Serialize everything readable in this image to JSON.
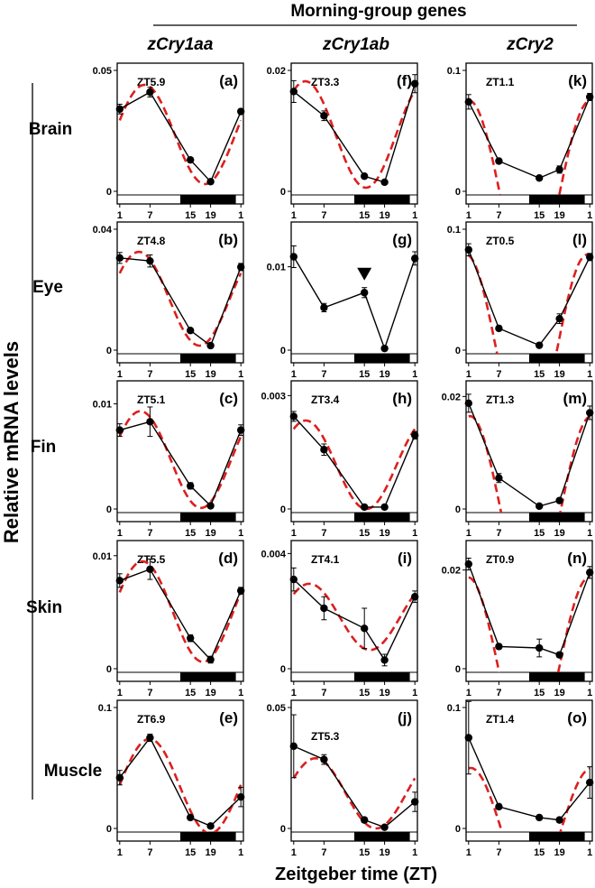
{
  "header": {
    "title": "Morning-group genes"
  },
  "columns": [
    "zCry1aa",
    "zCry1ab",
    "zCry2"
  ],
  "rows": [
    "Brain",
    "Eye",
    "Fin",
    "Skin",
    "Muscle"
  ],
  "y_axis_label": "Relative mRNA levels",
  "x_axis_label": "Zeitgeber time (ZT)",
  "x_tick_labels": [
    "1",
    "7",
    "15",
    "19",
    "1"
  ],
  "colors": {
    "data_line": "#000000",
    "fit_curve": "#dd1f1f",
    "dark_phase_bar": "#000000"
  },
  "chart_data": [
    {
      "type": "line",
      "panel": "(a)",
      "gene": "zCry1aa",
      "tissue": "Brain",
      "peak_label": "ZT5.9",
      "x": [
        1,
        7,
        15,
        19,
        25
      ],
      "values": [
        0.034,
        0.041,
        0.013,
        0.004,
        0.033
      ],
      "errors": [
        0.002,
        0.002,
        0.001,
        0.001,
        0.001
      ],
      "y_ticks": [
        "0",
        "0.05"
      ],
      "ylim": [
        0,
        0.05
      ],
      "fit": {
        "phase": 5.9,
        "mesor": 0.0235,
        "amplitude": 0.0205
      }
    },
    {
      "type": "line",
      "panel": "(f)",
      "gene": "zCry1ab",
      "tissue": "Brain",
      "peak_label": "ZT3.3",
      "x": [
        1,
        7,
        15,
        19,
        25
      ],
      "values": [
        0.0165,
        0.0125,
        0.0025,
        0.0015,
        0.0178
      ],
      "errors": [
        0.0018,
        0.0008,
        0.0003,
        0.0003,
        0.0015
      ],
      "y_ticks": [
        "0",
        "0.02"
      ],
      "ylim": [
        0,
        0.02
      ],
      "fit": {
        "phase": 3.3,
        "mesor": 0.0094,
        "amplitude": 0.0088
      }
    },
    {
      "type": "line",
      "panel": "(k)",
      "gene": "zCry2",
      "tissue": "Brain",
      "peak_label": "ZT1.1",
      "x": [
        1,
        7,
        15,
        19,
        25
      ],
      "values": [
        0.074,
        0.025,
        0.011,
        0.018,
        0.078
      ],
      "errors": [
        0.006,
        0.002,
        0.001,
        0.003,
        0.003
      ],
      "y_ticks": [
        "0",
        "0.1"
      ],
      "ylim": [
        0,
        0.1
      ],
      "fit": {
        "phase": 1.1,
        "mesor": 0.0,
        "amplitude": 0.075
      }
    },
    {
      "type": "line",
      "panel": "(b)",
      "gene": "zCry1aa",
      "tissue": "Eye",
      "peak_label": "ZT4.8",
      "x": [
        1,
        7,
        15,
        19,
        25
      ],
      "values": [
        0.0305,
        0.0295,
        0.0065,
        0.0015,
        0.0275
      ],
      "errors": [
        0.0018,
        0.002,
        0.0005,
        0.0004,
        0.0012
      ],
      "y_ticks": [
        "0",
        "0.04"
      ],
      "ylim": [
        0,
        0.04
      ],
      "fit": {
        "phase": 4.8,
        "mesor": 0.017,
        "amplitude": 0.0155
      }
    },
    {
      "type": "line",
      "panel": "(g)",
      "gene": "zCry1ab",
      "tissue": "Eye",
      "peak_label": "",
      "x": [
        1,
        7,
        15,
        19,
        25
      ],
      "values": [
        0.0112,
        0.0051,
        0.0069,
        0.0002,
        0.011
      ],
      "errors": [
        0.0013,
        0.0005,
        0.0006,
        0.0002,
        0.0008
      ],
      "y_ticks": [
        "0",
        "0.01"
      ],
      "ylim": [
        0,
        0.0145
      ],
      "arrow_at_x": 15,
      "fit": null
    },
    {
      "type": "line",
      "panel": "(l)",
      "gene": "zCry2",
      "tissue": "Eye",
      "peak_label": "ZT0.5",
      "x": [
        1,
        7,
        15,
        19,
        25
      ],
      "values": [
        0.083,
        0.018,
        0.004,
        0.026,
        0.077
      ],
      "errors": [
        0.005,
        0.002,
        0.001,
        0.004,
        0.003
      ],
      "y_ticks": [
        "0",
        "0.1"
      ],
      "ylim": [
        0,
        0.1
      ],
      "fit": {
        "phase": 0.5,
        "mesor": 0.0,
        "amplitude": 0.079
      }
    },
    {
      "type": "line",
      "panel": "(c)",
      "gene": "zCry1aa",
      "tissue": "Fin",
      "peak_label": "ZT5.1",
      "x": [
        1,
        7,
        15,
        19,
        25
      ],
      "values": [
        0.0075,
        0.0083,
        0.0022,
        0.0003,
        0.0075
      ],
      "errors": [
        0.0006,
        0.0014,
        0.0003,
        0.0002,
        0.0005
      ],
      "y_ticks": [
        "0",
        "0.01"
      ],
      "ylim": [
        0,
        0.0115
      ],
      "fit": {
        "phase": 5.1,
        "mesor": 0.0047,
        "amplitude": 0.0046
      }
    },
    {
      "type": "line",
      "panel": "(h)",
      "gene": "zCry1ab",
      "tissue": "Fin",
      "peak_label": "ZT3.4",
      "x": [
        1,
        7,
        15,
        19,
        25
      ],
      "values": [
        0.00245,
        0.00157,
        5e-05,
        5e-05,
        0.00195
      ],
      "errors": [
        0.00013,
        0.00015,
        5e-05,
        5e-05,
        0.0001
      ],
      "y_ticks": [
        "0",
        "0.003"
      ],
      "ylim": [
        0,
        0.0032
      ],
      "fit": {
        "phase": 3.4,
        "mesor": 0.00117,
        "amplitude": 0.00117
      }
    },
    {
      "type": "line",
      "panel": "(m)",
      "gene": "zCry2",
      "tissue": "Fin",
      "peak_label": "ZT1.3",
      "x": [
        1,
        7,
        15,
        19,
        25
      ],
      "values": [
        0.0188,
        0.0055,
        0.0005,
        0.0015,
        0.0171
      ],
      "errors": [
        0.0016,
        0.0008,
        0.0002,
        0.0003,
        0.0012
      ],
      "y_ticks": [
        "0",
        "0.02"
      ],
      "ylim": [
        0,
        0.0215
      ],
      "fit": {
        "phase": 1.3,
        "mesor": 0.0,
        "amplitude": 0.0165
      }
    },
    {
      "type": "line",
      "panel": "(d)",
      "gene": "zCry1aa",
      "tissue": "Skin",
      "peak_label": "ZT5.5",
      "x": [
        1,
        7,
        15,
        19,
        25
      ],
      "values": [
        0.0078,
        0.0088,
        0.0027,
        0.0008,
        0.0069
      ],
      "errors": [
        0.0006,
        0.0009,
        0.0003,
        0.0003,
        0.0003
      ],
      "y_ticks": [
        "0",
        "0.01"
      ],
      "ylim": [
        0,
        0.0107
      ],
      "fit": {
        "phase": 5.5,
        "mesor": 0.00505,
        "amplitude": 0.00445
      }
    },
    {
      "type": "line",
      "panel": "(i)",
      "gene": "zCry1ab",
      "tissue": "Skin",
      "peak_label": "ZT4.1",
      "x": [
        1,
        7,
        15,
        19,
        25
      ],
      "values": [
        0.0031,
        0.0021,
        0.0014,
        0.0003,
        0.0025
      ],
      "errors": [
        0.0004,
        0.0004,
        0.0007,
        0.0002,
        0.0002
      ],
      "y_ticks": [
        "0",
        "0.004"
      ],
      "ylim": [
        0,
        0.0042
      ],
      "fit": {
        "phase": 4.1,
        "mesor": 0.0018,
        "amplitude": 0.00115
      }
    },
    {
      "type": "line",
      "panel": "(n)",
      "gene": "zCry2",
      "tissue": "Skin",
      "peak_label": "ZT0.9",
      "x": [
        1,
        7,
        15,
        19,
        25
      ],
      "values": [
        0.0212,
        0.0045,
        0.0042,
        0.0028,
        0.0195
      ],
      "errors": [
        0.0012,
        0.0005,
        0.0018,
        0.0005,
        0.0012
      ],
      "y_ticks": [
        "0",
        "0.02"
      ],
      "ylim": [
        0,
        0.0245
      ],
      "fit": {
        "phase": 0.9,
        "mesor": 0.0,
        "amplitude": 0.0185
      }
    },
    {
      "type": "line",
      "panel": "(e)",
      "gene": "zCry1aa",
      "tissue": "Muscle",
      "peak_label": "ZT6.9",
      "x": [
        1,
        7,
        15,
        19,
        25
      ],
      "values": [
        0.042,
        0.075,
        0.009,
        0.002,
        0.026
      ],
      "errors": [
        0.006,
        0.003,
        0.002,
        0.001,
        0.008
      ],
      "y_ticks": [
        "0",
        "0.1"
      ],
      "ylim": [
        0,
        0.1
      ],
      "fit": {
        "phase": 6.9,
        "mesor": 0.035,
        "amplitude": 0.039
      }
    },
    {
      "type": "line",
      "panel": "(j)",
      "gene": "zCry1ab",
      "tissue": "Muscle",
      "peak_label": "ZT5.3",
      "x": [
        1,
        7,
        15,
        19,
        25
      ],
      "values": [
        0.034,
        0.0285,
        0.0035,
        0.0005,
        0.011
      ],
      "errors": [
        0.013,
        0.002,
        0.001,
        0.0005,
        0.004
      ],
      "y_ticks": [
        "0",
        "0.05"
      ],
      "ylim": [
        0,
        0.05
      ],
      "fit": {
        "phase": 5.3,
        "mesor": 0.0145,
        "amplitude": 0.0145
      }
    },
    {
      "type": "line",
      "panel": "(o)",
      "gene": "zCry2",
      "tissue": "Muscle",
      "peak_label": "ZT1.4",
      "x": [
        1,
        7,
        15,
        19,
        25
      ],
      "values": [
        0.075,
        0.018,
        0.009,
        0.007,
        0.038
      ],
      "errors": [
        0.03,
        0.002,
        0.002,
        0.002,
        0.013
      ],
      "y_ticks": [
        "0",
        "0.1"
      ],
      "ylim": [
        0,
        0.1
      ],
      "fit": {
        "phase": 1.4,
        "mesor": 0.0,
        "amplitude": 0.05
      }
    }
  ]
}
